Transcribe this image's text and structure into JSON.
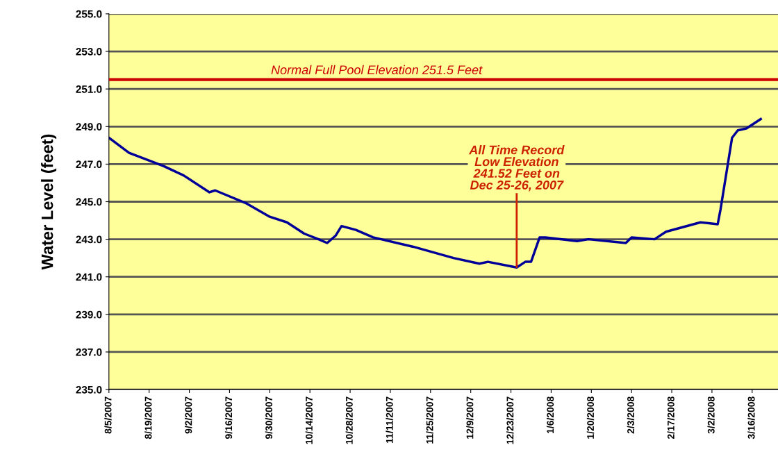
{
  "chart_data": {
    "type": "line",
    "ylabel": "Water Level (feet)",
    "x": [
      "2007-08-05",
      "2007-08-12",
      "2007-08-24",
      "2007-08-31",
      "2007-09-09",
      "2007-09-11",
      "2007-09-22",
      "2007-09-30",
      "2007-10-06",
      "2007-10-12",
      "2007-10-17",
      "2007-10-20",
      "2007-10-23",
      "2007-10-25",
      "2007-10-30",
      "2007-11-05",
      "2007-11-19",
      "2007-12-03",
      "2007-12-12",
      "2007-12-15",
      "2007-12-25",
      "2007-12-28",
      "2007-12-30",
      "2008-01-02",
      "2008-01-04",
      "2008-01-15",
      "2008-01-19",
      "2008-02-01",
      "2008-02-03",
      "2008-02-11",
      "2008-02-15",
      "2008-02-27",
      "2008-03-04",
      "2008-03-05",
      "2008-03-07",
      "2008-03-09",
      "2008-03-11",
      "2008-03-14",
      "2008-03-19"
    ],
    "series": [
      {
        "color": "#000099",
        "values": [
          248.4,
          247.6,
          246.9,
          246.4,
          245.5,
          245.6,
          244.9,
          244.2,
          243.9,
          243.3,
          243.0,
          242.8,
          243.2,
          243.7,
          243.5,
          243.1,
          242.6,
          242.0,
          241.7,
          241.8,
          241.5,
          241.8,
          241.8,
          243.1,
          243.1,
          242.9,
          243.0,
          242.8,
          243.1,
          243.0,
          243.4,
          243.9,
          243.8,
          244.6,
          246.5,
          248.4,
          248.8,
          248.9,
          249.4
        ]
      }
    ],
    "xlim": [
      "2007-08-05",
      "2008-03-25"
    ],
    "xticks": [
      {
        "value": "2007-08-05",
        "label": "8/5/2007"
      },
      {
        "value": "2007-08-19",
        "label": "8/19/2007"
      },
      {
        "value": "2007-09-02",
        "label": "9/2/2007"
      },
      {
        "value": "2007-09-16",
        "label": "9/16/2007"
      },
      {
        "value": "2007-09-30",
        "label": "9/30/2007"
      },
      {
        "value": "2007-10-14",
        "label": "10/14/2007"
      },
      {
        "value": "2007-10-28",
        "label": "10/28/2007"
      },
      {
        "value": "2007-11-11",
        "label": "11/11/2007"
      },
      {
        "value": "2007-11-25",
        "label": "11/25/2007"
      },
      {
        "value": "2007-12-09",
        "label": "12/9/2007"
      },
      {
        "value": "2007-12-23",
        "label": "12/23/2007"
      },
      {
        "value": "2008-01-06",
        "label": "1/6/2008"
      },
      {
        "value": "2008-01-20",
        "label": "1/20/2008"
      },
      {
        "value": "2008-02-03",
        "label": "2/3/2008"
      },
      {
        "value": "2008-02-17",
        "label": "2/17/2008"
      },
      {
        "value": "2008-03-02",
        "label": "3/2/2008"
      },
      {
        "value": "2008-03-16",
        "label": "3/16/2008"
      }
    ],
    "ylim": [
      235,
      255
    ],
    "yticks": [
      {
        "value": 235,
        "label": "235.0"
      },
      {
        "value": 237,
        "label": "237.0"
      },
      {
        "value": 239,
        "label": "239.0"
      },
      {
        "value": 241,
        "label": "241.0"
      },
      {
        "value": 243,
        "label": "243.0"
      },
      {
        "value": 245,
        "label": "245.0"
      },
      {
        "value": 247,
        "label": "247.0"
      },
      {
        "value": 249,
        "label": "249.0"
      },
      {
        "value": 251,
        "label": "251.0"
      },
      {
        "value": 253,
        "label": "253.0"
      },
      {
        "value": 255,
        "label": "255.0"
      }
    ],
    "ref_lines": [
      {
        "axis": "y",
        "value": 251.5,
        "label": "Normal Full Pool Elevation 251.5 Feet",
        "color": "#cc0000"
      }
    ],
    "annotations": [
      {
        "text": "All Time Record\nLow Elevation\n241.52 Feet on\nDec 25-26, 2007",
        "x": "2007-12-25",
        "y": 241.52
      }
    ],
    "grid": "y",
    "marker": "none",
    "line_style": "solid"
  }
}
